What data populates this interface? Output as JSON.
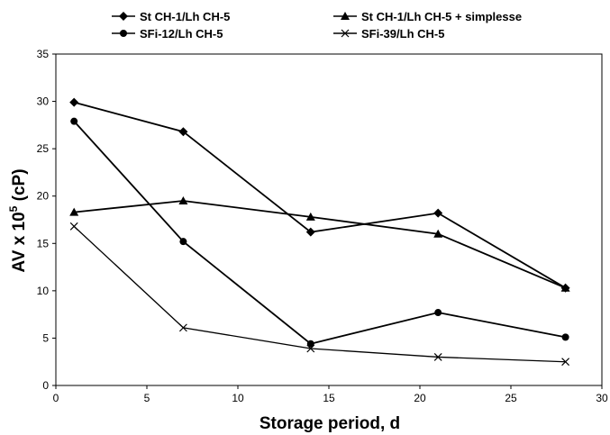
{
  "chart_data": {
    "type": "line",
    "xlabel": "Storage period, d",
    "ylabel_main": "AV x 10",
    "ylabel_sup": "5",
    "ylabel_unit": " (cP)",
    "xlim": [
      0,
      30
    ],
    "ylim": [
      0,
      35
    ],
    "xticks": [
      "0",
      "5",
      "10",
      "15",
      "20",
      "25",
      "30"
    ],
    "yticks": [
      "0",
      "5",
      "10",
      "15",
      "20",
      "25",
      "30",
      "35"
    ],
    "grid": false,
    "legend_position": "top",
    "series": [
      {
        "name": "St CH-1/Lh CH-5",
        "marker": "diamond",
        "x": [
          1,
          7,
          14,
          21,
          28
        ],
        "values": [
          29.9,
          26.8,
          16.2,
          18.2,
          10.3
        ]
      },
      {
        "name": "St CH-1/Lh CH-5 + simplesse",
        "marker": "triangle",
        "x": [
          1,
          7,
          14,
          21,
          28
        ],
        "values": [
          18.3,
          19.5,
          17.8,
          16.0,
          10.3
        ]
      },
      {
        "name": "SFi-12/Lh CH-5",
        "marker": "circle",
        "x": [
          1,
          7,
          14,
          21,
          28
        ],
        "values": [
          27.9,
          15.2,
          4.4,
          7.7,
          5.1
        ]
      },
      {
        "name": "SFi-39/Lh CH-5",
        "marker": "x",
        "x": [
          1,
          7,
          14,
          21,
          28
        ],
        "values": [
          16.8,
          6.1,
          3.9,
          3.0,
          2.5
        ]
      }
    ]
  }
}
